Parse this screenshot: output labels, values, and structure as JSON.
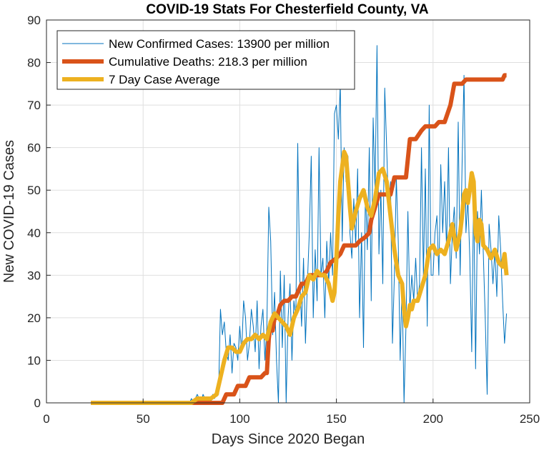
{
  "chart_data": {
    "type": "line",
    "title": "COVID-19 Stats For Chesterfield County, VA",
    "xlabel": "Days Since 2020 Began",
    "ylabel": "New COVID-19 Cases",
    "xlim": [
      0,
      250
    ],
    "ylim": [
      0,
      90
    ],
    "x_ticks": [
      "0",
      "50",
      "100",
      "150",
      "200",
      "250"
    ],
    "y_ticks": [
      "0",
      "10",
      "20",
      "30",
      "40",
      "50",
      "60",
      "70",
      "80",
      "90"
    ],
    "grid": true,
    "legend_position": "top-left",
    "series": [
      {
        "name": "New Confirmed Cases: 13900 per million",
        "color": "#0072BD",
        "style": "thin",
        "points": [
          [
            23,
            0
          ],
          [
            40,
            0
          ],
          [
            60,
            0
          ],
          [
            74,
            0
          ],
          [
            75,
            1
          ],
          [
            76,
            0
          ],
          [
            77,
            1
          ],
          [
            78,
            2
          ],
          [
            79,
            1
          ],
          [
            80,
            0
          ],
          [
            81,
            2
          ],
          [
            82,
            1
          ],
          [
            83,
            0
          ],
          [
            84,
            1
          ],
          [
            85,
            0
          ],
          [
            86,
            2
          ],
          [
            87,
            1
          ],
          [
            88,
            3
          ],
          [
            89,
            2
          ],
          [
            90,
            22
          ],
          [
            91,
            16
          ],
          [
            92,
            19
          ],
          [
            93,
            12
          ],
          [
            94,
            10
          ],
          [
            95,
            16
          ],
          [
            96,
            7
          ],
          [
            97,
            14
          ],
          [
            98,
            13
          ],
          [
            99,
            10
          ],
          [
            100,
            18
          ],
          [
            101,
            12
          ],
          [
            102,
            24
          ],
          [
            103,
            20
          ],
          [
            104,
            10
          ],
          [
            105,
            14
          ],
          [
            106,
            22
          ],
          [
            107,
            18
          ],
          [
            108,
            12
          ],
          [
            109,
            24
          ],
          [
            110,
            8
          ],
          [
            111,
            18
          ],
          [
            112,
            22
          ],
          [
            113,
            10
          ],
          [
            114,
            18
          ],
          [
            115,
            46
          ],
          [
            116,
            38
          ],
          [
            117,
            16
          ],
          [
            118,
            26
          ],
          [
            119,
            10
          ],
          [
            120,
            0
          ],
          [
            121,
            31
          ],
          [
            122,
            13
          ],
          [
            123,
            30
          ],
          [
            124,
            0
          ],
          [
            125,
            20
          ],
          [
            126,
            28
          ],
          [
            127,
            10
          ],
          [
            128,
            24
          ],
          [
            129,
            20
          ],
          [
            130,
            61
          ],
          [
            131,
            30
          ],
          [
            132,
            18
          ],
          [
            133,
            34
          ],
          [
            134,
            14
          ],
          [
            135,
            28
          ],
          [
            136,
            40
          ],
          [
            137,
            58
          ],
          [
            138,
            20
          ],
          [
            139,
            36
          ],
          [
            140,
            24
          ],
          [
            141,
            60
          ],
          [
            142,
            30
          ],
          [
            143,
            34
          ],
          [
            144,
            20
          ],
          [
            145,
            38
          ],
          [
            146,
            28
          ],
          [
            147,
            40
          ],
          [
            148,
            30
          ],
          [
            149,
            68
          ],
          [
            150,
            70
          ],
          [
            151,
            62
          ],
          [
            152,
            75
          ],
          [
            153,
            38
          ],
          [
            154,
            60
          ],
          [
            155,
            52
          ],
          [
            156,
            58
          ],
          [
            157,
            40
          ],
          [
            158,
            34
          ],
          [
            159,
            48
          ],
          [
            160,
            37
          ],
          [
            161,
            55
          ],
          [
            162,
            20
          ],
          [
            163,
            40
          ],
          [
            164,
            13
          ],
          [
            165,
            50
          ],
          [
            166,
            36
          ],
          [
            167,
            60
          ],
          [
            168,
            24
          ],
          [
            169,
            67
          ],
          [
            170,
            50
          ],
          [
            171,
            84
          ],
          [
            172,
            35
          ],
          [
            173,
            50
          ],
          [
            174,
            28
          ],
          [
            175,
            74
          ],
          [
            176,
            60
          ],
          [
            177,
            45
          ],
          [
            178,
            52
          ],
          [
            179,
            14
          ],
          [
            180,
            30
          ],
          [
            181,
            53
          ],
          [
            182,
            38
          ],
          [
            183,
            10
          ],
          [
            184,
            28
          ],
          [
            185,
            0
          ],
          [
            186,
            18
          ],
          [
            187,
            45
          ],
          [
            188,
            22
          ],
          [
            189,
            30
          ],
          [
            190,
            24
          ],
          [
            191,
            34
          ],
          [
            192,
            24
          ],
          [
            193,
            28
          ],
          [
            194,
            60
          ],
          [
            195,
            30
          ],
          [
            196,
            55
          ],
          [
            197,
            18
          ],
          [
            198,
            70
          ],
          [
            199,
            30
          ],
          [
            200,
            30
          ],
          [
            201,
            40
          ],
          [
            202,
            44
          ],
          [
            203,
            30
          ],
          [
            204,
            56
          ],
          [
            205,
            40
          ],
          [
            206,
            52
          ],
          [
            207,
            36
          ],
          [
            208,
            60
          ],
          [
            209,
            28
          ],
          [
            210,
            40
          ],
          [
            211,
            46
          ],
          [
            212,
            34
          ],
          [
            213,
            66
          ],
          [
            214,
            30
          ],
          [
            215,
            56
          ],
          [
            216,
            77
          ],
          [
            217,
            40
          ],
          [
            218,
            48
          ],
          [
            219,
            34
          ],
          [
            220,
            12
          ],
          [
            221,
            50
          ],
          [
            222,
            8
          ],
          [
            223,
            45
          ],
          [
            224,
            35
          ],
          [
            225,
            50
          ],
          [
            226,
            35
          ],
          [
            227,
            20
          ],
          [
            228,
            2
          ],
          [
            229,
            42
          ],
          [
            230,
            36
          ],
          [
            231,
            28
          ],
          [
            232,
            36
          ],
          [
            233,
            25
          ],
          [
            234,
            44
          ],
          [
            235,
            36
          ],
          [
            236,
            24
          ],
          [
            237,
            14
          ],
          [
            238,
            21
          ]
        ]
      },
      {
        "name": "Cumulative Deaths: 218.3 per million",
        "color": "#D95319",
        "style": "thick",
        "points": [
          [
            23,
            0
          ],
          [
            91,
            0
          ],
          [
            93,
            2
          ],
          [
            97,
            2
          ],
          [
            99,
            4
          ],
          [
            103,
            4
          ],
          [
            105,
            6
          ],
          [
            111,
            6
          ],
          [
            113,
            7
          ],
          [
            114,
            7
          ],
          [
            115,
            15
          ],
          [
            116,
            19
          ],
          [
            117,
            17
          ],
          [
            118,
            20
          ],
          [
            119,
            20
          ],
          [
            121,
            23
          ],
          [
            123,
            24
          ],
          [
            125,
            24
          ],
          [
            127,
            25
          ],
          [
            129,
            25
          ],
          [
            132,
            28
          ],
          [
            134,
            28
          ],
          [
            136,
            30
          ],
          [
            143,
            30
          ],
          [
            145,
            31
          ],
          [
            147,
            33
          ],
          [
            150,
            34
          ],
          [
            152,
            35
          ],
          [
            154,
            37
          ],
          [
            160,
            37
          ],
          [
            162,
            38
          ],
          [
            165,
            39
          ],
          [
            167,
            40
          ],
          [
            168,
            43
          ],
          [
            170,
            46
          ],
          [
            172,
            49
          ],
          [
            178,
            49
          ],
          [
            180,
            53
          ],
          [
            186,
            53
          ],
          [
            188,
            62
          ],
          [
            191,
            62
          ],
          [
            194,
            64
          ],
          [
            196,
            65
          ],
          [
            201,
            65
          ],
          [
            203,
            66
          ],
          [
            206,
            66
          ],
          [
            209,
            70
          ],
          [
            211,
            75
          ],
          [
            215,
            75
          ],
          [
            217,
            76
          ],
          [
            236,
            76
          ],
          [
            237,
            77
          ],
          [
            238,
            77
          ]
        ]
      },
      {
        "name": "7 Day Case Average",
        "color": "#EDB120",
        "style": "thick",
        "points": [
          [
            23,
            0
          ],
          [
            60,
            0
          ],
          [
            75,
            0
          ],
          [
            78,
            1
          ],
          [
            82,
            1
          ],
          [
            85,
            1
          ],
          [
            88,
            2
          ],
          [
            90,
            6
          ],
          [
            92,
            10
          ],
          [
            94,
            13
          ],
          [
            96,
            13
          ],
          [
            98,
            12
          ],
          [
            100,
            12
          ],
          [
            102,
            14
          ],
          [
            104,
            15
          ],
          [
            106,
            15
          ],
          [
            108,
            16
          ],
          [
            110,
            15
          ],
          [
            112,
            16
          ],
          [
            114,
            15
          ],
          [
            116,
            19
          ],
          [
            118,
            21
          ],
          [
            120,
            20
          ],
          [
            122,
            19
          ],
          [
            124,
            18
          ],
          [
            126,
            16
          ],
          [
            128,
            20
          ],
          [
            130,
            22
          ],
          [
            132,
            25
          ],
          [
            134,
            26
          ],
          [
            136,
            30
          ],
          [
            138,
            29
          ],
          [
            140,
            31
          ],
          [
            142,
            30
          ],
          [
            144,
            30
          ],
          [
            146,
            28
          ],
          [
            148,
            24
          ],
          [
            149,
            26
          ],
          [
            150,
            34
          ],
          [
            151,
            44
          ],
          [
            152,
            52
          ],
          [
            154,
            59
          ],
          [
            155,
            58
          ],
          [
            156,
            52
          ],
          [
            157,
            46
          ],
          [
            158,
            41
          ],
          [
            159,
            43
          ],
          [
            160,
            45
          ],
          [
            162,
            48
          ],
          [
            164,
            50
          ],
          [
            166,
            46
          ],
          [
            168,
            44
          ],
          [
            170,
            48
          ],
          [
            172,
            54
          ],
          [
            174,
            55
          ],
          [
            176,
            52
          ],
          [
            177,
            48
          ],
          [
            178,
            44
          ],
          [
            179,
            40
          ],
          [
            180,
            36
          ],
          [
            181,
            33
          ],
          [
            182,
            30
          ],
          [
            183,
            29
          ],
          [
            184,
            28
          ],
          [
            185,
            22
          ],
          [
            186,
            18
          ],
          [
            187,
            20
          ],
          [
            188,
            23
          ],
          [
            189,
            22
          ],
          [
            190,
            24
          ],
          [
            192,
            24
          ],
          [
            194,
            27
          ],
          [
            196,
            30
          ],
          [
            198,
            36
          ],
          [
            200,
            37
          ],
          [
            202,
            35
          ],
          [
            204,
            36
          ],
          [
            206,
            35
          ],
          [
            208,
            38
          ],
          [
            210,
            42
          ],
          [
            212,
            36
          ],
          [
            214,
            40
          ],
          [
            215,
            44
          ],
          [
            216,
            49
          ],
          [
            217,
            50
          ],
          [
            218,
            47
          ],
          [
            219,
            50
          ],
          [
            220,
            54
          ],
          [
            221,
            52
          ],
          [
            222,
            40
          ],
          [
            223,
            38
          ],
          [
            224,
            43
          ],
          [
            225,
            42
          ],
          [
            226,
            37
          ],
          [
            228,
            36
          ],
          [
            230,
            34
          ],
          [
            232,
            36
          ],
          [
            234,
            33
          ],
          [
            236,
            32
          ],
          [
            237,
            35
          ],
          [
            238,
            30
          ]
        ]
      }
    ]
  }
}
